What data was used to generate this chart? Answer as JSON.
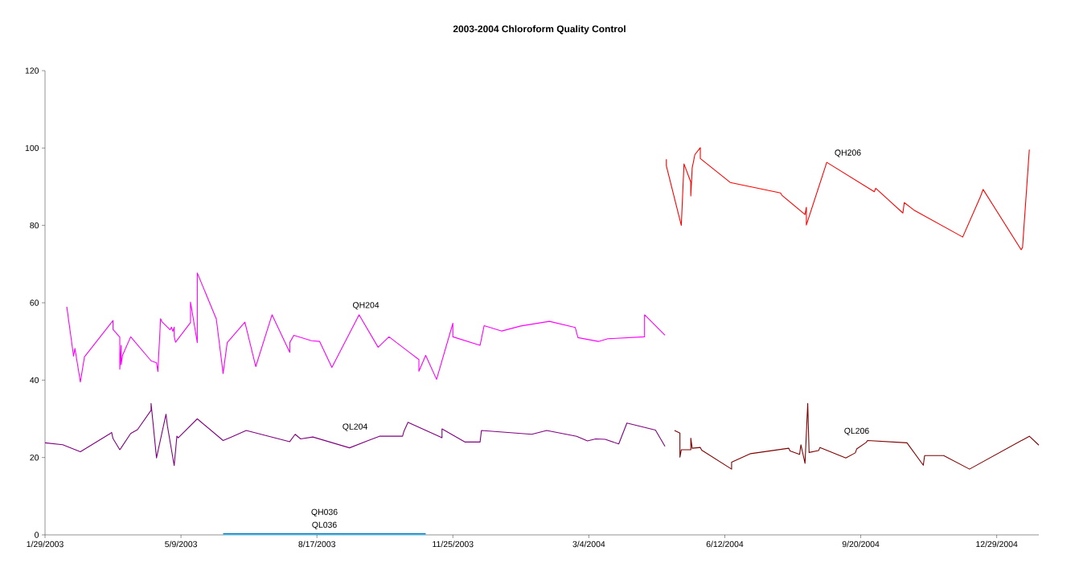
{
  "chart_data": {
    "type": "line",
    "title": "2003-2004 Chloroform Quality Control",
    "xlim": [
      "2003-01-29",
      "2005-01-29"
    ],
    "ylim": [
      0,
      120
    ],
    "yticks": [
      0,
      20,
      40,
      60,
      80,
      100,
      120
    ],
    "xticks": [
      {
        "value": "2003-01-29",
        "label": "1/29/2003"
      },
      {
        "value": "2003-05-09",
        "label": "5/9/2003"
      },
      {
        "value": "2003-08-17",
        "label": "8/17/2003"
      },
      {
        "value": "2003-11-25",
        "label": "11/25/2003"
      },
      {
        "value": "2004-03-04",
        "label": "3/4/2004"
      },
      {
        "value": "2004-06-12",
        "label": "6/12/2004"
      },
      {
        "value": "2004-09-20",
        "label": "9/20/2004"
      },
      {
        "value": "2004-12-29",
        "label": "12/29/2004"
      }
    ],
    "grid": false,
    "series": [
      {
        "name": "QH204",
        "color": "#ff00ff",
        "x": [
          "2003-02-14",
          "2003-02-19",
          "2003-02-20",
          "2003-02-24",
          "2003-02-27",
          "2003-03-20",
          "2003-03-20",
          "2003-03-25",
          "2003-03-25",
          "2003-03-26",
          "2003-03-26",
          "2003-03-27",
          "2003-04-02",
          "2003-04-17",
          "2003-04-21",
          "2003-04-22",
          "2003-04-24",
          "2003-04-25",
          "2003-05-01",
          "2003-05-02",
          "2003-05-03",
          "2003-05-04",
          "2003-05-04",
          "2003-05-05",
          "2003-05-16",
          "2003-05-16",
          "2003-05-21",
          "2003-05-21",
          "2003-06-04",
          "2003-06-09",
          "2003-06-12",
          "2003-06-25",
          "2003-07-03",
          "2003-07-15",
          "2003-07-28",
          "2003-07-28",
          "2003-07-31",
          "2003-08-13",
          "2003-08-19",
          "2003-08-28",
          "2003-09-17",
          "2003-10-01",
          "2003-10-09",
          "2003-10-31",
          "2003-10-31",
          "2003-11-05",
          "2003-11-13",
          "2003-11-25",
          "2003-11-25",
          "2003-12-15",
          "2003-12-18",
          "2003-12-31",
          "2004-01-14",
          "2004-02-04",
          "2004-02-23",
          "2004-02-25",
          "2004-03-11",
          "2004-03-18",
          "2004-04-14",
          "2004-04-14",
          "2004-04-29"
        ],
        "values": [
          59.0,
          46.2,
          48.2,
          39.5,
          46.0,
          55.4,
          53.1,
          51.1,
          42.8,
          49.0,
          44.0,
          46.4,
          51.2,
          45.0,
          44.5,
          42.2,
          55.9,
          55.1,
          53.0,
          53.7,
          52.6,
          53.7,
          51.4,
          49.8,
          54.9,
          60.2,
          49.7,
          67.7,
          55.8,
          41.7,
          49.7,
          55.0,
          43.5,
          56.9,
          47.2,
          49.7,
          51.6,
          50.2,
          50.0,
          43.3,
          56.9,
          48.5,
          51.2,
          45.3,
          42.3,
          46.4,
          40.2,
          54.7,
          51.2,
          49.0,
          54.1,
          52.7,
          54.0,
          55.2,
          53.6,
          51.0,
          50.0,
          50.7,
          51.2,
          56.9,
          51.6
        ]
      },
      {
        "name": "QL204",
        "color": "#800080",
        "x": [
          "2003-01-29",
          "2003-02-11",
          "2003-02-24",
          "2003-03-18",
          "2003-03-19",
          "2003-03-20",
          "2003-03-25",
          "2003-03-26",
          "2003-04-02",
          "2003-04-07",
          "2003-04-17",
          "2003-04-17",
          "2003-04-21",
          "2003-04-28",
          "2003-04-29",
          "2003-05-04",
          "2003-05-06",
          "2003-05-07",
          "2003-05-21",
          "2003-06-09",
          "2003-06-15",
          "2003-06-26",
          "2003-07-28",
          "2003-08-01",
          "2003-08-05",
          "2003-08-14",
          "2003-09-10",
          "2003-09-23",
          "2003-10-02",
          "2003-10-19",
          "2003-10-20",
          "2003-10-23",
          "2003-11-17",
          "2003-11-17",
          "2003-12-04",
          "2003-12-15",
          "2003-12-16",
          "2004-01-22",
          "2004-02-02",
          "2004-02-24",
          "2004-03-03",
          "2004-03-09",
          "2004-03-16",
          "2004-03-26",
          "2004-04-01",
          "2004-04-22",
          "2004-04-29"
        ],
        "values": [
          23.8,
          23.3,
          21.5,
          26.2,
          26.5,
          24.9,
          22.0,
          22.5,
          26.2,
          27.2,
          32.2,
          34.0,
          19.9,
          31.2,
          28.2,
          17.9,
          25.5,
          25.1,
          30.0,
          24.4,
          25.3,
          27.0,
          24.1,
          26.0,
          24.8,
          25.3,
          22.5,
          24.3,
          25.5,
          25.5,
          26.8,
          29.1,
          25.1,
          27.4,
          24.0,
          24.0,
          27.0,
          26.0,
          27.0,
          25.5,
          24.3,
          24.8,
          24.7,
          23.5,
          28.9,
          27.1,
          22.9
        ]
      },
      {
        "name": "QH206",
        "color": "#ff0000",
        "x": [
          "2004-04-30",
          "2004-04-30",
          "2004-05-11",
          "2004-05-13",
          "2004-05-18",
          "2004-05-18",
          "2004-05-19",
          "2004-05-21",
          "2004-05-25",
          "2004-05-25",
          "2004-06-16",
          "2004-07-23",
          "2004-07-24",
          "2004-08-10",
          "2004-08-11",
          "2004-08-11",
          "2004-08-26",
          "2004-09-30",
          "2004-10-01",
          "2004-10-21",
          "2004-10-22",
          "2004-10-29",
          "2004-12-04",
          "2004-12-17",
          "2004-12-19",
          "2005-01-16",
          "2005-01-17",
          "2005-01-22"
        ],
        "values": [
          97.1,
          95.4,
          80.0,
          95.9,
          91.2,
          87.6,
          94.8,
          98.3,
          100.1,
          97.3,
          91.1,
          88.4,
          87.8,
          82.8,
          84.7,
          80.1,
          96.3,
          88.7,
          89.6,
          83.2,
          85.9,
          84.0,
          77.0,
          87.4,
          89.3,
          73.7,
          74.3,
          99.6
        ]
      },
      {
        "name": "QL206",
        "color": "#800000",
        "x": [
          "2004-05-06",
          "2004-05-10",
          "2004-05-10",
          "2004-05-11",
          "2004-05-18",
          "2004-05-18",
          "2004-05-19",
          "2004-05-25",
          "2004-05-26",
          "2004-06-17",
          "2004-06-17",
          "2004-07-01",
          "2004-07-29",
          "2004-07-30",
          "2004-08-06",
          "2004-08-07",
          "2004-08-10",
          "2004-08-12",
          "2004-08-13",
          "2004-08-20",
          "2004-08-21",
          "2004-09-09",
          "2004-09-16",
          "2004-09-17",
          "2004-09-24",
          "2004-09-25",
          "2004-10-24",
          "2004-11-05",
          "2004-11-06",
          "2004-11-20",
          "2004-12-09",
          "2005-01-22",
          "2005-01-29"
        ],
        "values": [
          27.0,
          26.3,
          20.1,
          22.0,
          22.0,
          25.0,
          22.4,
          22.6,
          21.9,
          17.0,
          18.8,
          21.0,
          22.4,
          21.7,
          20.8,
          23.3,
          18.5,
          34.0,
          21.3,
          21.8,
          22.6,
          19.9,
          21.2,
          22.2,
          23.9,
          24.4,
          23.8,
          18.0,
          20.5,
          20.5,
          17.0,
          25.5,
          23.2
        ]
      },
      {
        "name": "QH036",
        "color": "#0070c0",
        "x": [
          "2003-06-09",
          "2003-07-15",
          "2003-08-19",
          "2003-09-23",
          "2003-11-05"
        ],
        "values": [
          0.3,
          0.3,
          0.3,
          0.3,
          0.3
        ]
      },
      {
        "name": "QL036",
        "color": "#33ccff",
        "x": [
          "2003-06-09",
          "2003-07-15",
          "2003-08-19",
          "2003-09-23",
          "2003-11-05"
        ],
        "values": [
          0.1,
          0.1,
          0.1,
          0.1,
          0.1
        ]
      }
    ]
  }
}
